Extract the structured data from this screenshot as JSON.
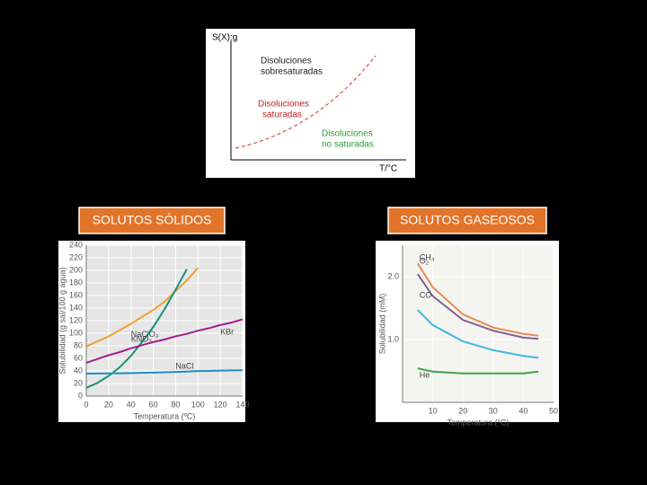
{
  "diagram": {
    "y_label": "S(X):g",
    "x_label": "T/°C",
    "regions": [
      {
        "lines": [
          "Disoluciones",
          "sobresaturadas"
        ]
      },
      {
        "lines": [
          "Disoluciones",
          "saturadas"
        ]
      },
      {
        "lines": [
          "Disoluciones",
          "no saturadas"
        ]
      }
    ]
  },
  "labels": [
    "SOLUTOS SÓLIDOS",
    "SOLUTOS GASEOSOS"
  ],
  "chart_data": [
    {
      "type": "line",
      "x_label": "Temperatura (ºC)",
      "y_label": "Solubilidad (g sal/100 g agua)",
      "x": [
        0,
        10,
        20,
        30,
        40,
        50,
        60,
        70,
        80,
        90,
        100,
        110,
        120,
        130,
        140
      ],
      "xlim": [
        0,
        140
      ],
      "xticks": [
        0,
        20,
        40,
        60,
        80,
        100,
        120,
        140
      ],
      "ylim": [
        0,
        240
      ],
      "yticks": [
        0,
        20,
        40,
        60,
        80,
        100,
        120,
        140,
        160,
        180,
        200,
        220,
        240
      ],
      "grid": true,
      "series": [
        {
          "name": "NaClO₃",
          "color": "#f0a030",
          "values": [
            79,
            87,
            95,
            105,
            115,
            126,
            137,
            150,
            167,
            184,
            204,
            null,
            null,
            null,
            null
          ]
        },
        {
          "name": "KNO₃",
          "color": "#16907a",
          "values": [
            13,
            21,
            32,
            46,
            64,
            86,
            110,
            138,
            169,
            202,
            null,
            null,
            null,
            null,
            null
          ]
        },
        {
          "name": "KBr",
          "color": "#a0208c",
          "values": [
            53,
            59,
            65,
            70,
            76,
            81,
            86,
            90,
            95,
            99,
            104,
            108,
            113,
            117,
            122
          ]
        },
        {
          "name": "NaCl",
          "color": "#1f8fc0",
          "values": [
            35.7,
            35.8,
            36,
            36.3,
            36.6,
            37,
            37.3,
            37.8,
            38.4,
            39,
            39.8,
            40,
            40.5,
            40.8,
            41
          ]
        }
      ]
    },
    {
      "type": "line",
      "x_label": "Temperatura (°C)",
      "y_label": "Solubilidad (mM)",
      "x": [
        5,
        10,
        20,
        30,
        40,
        45
      ],
      "xlim": [
        0,
        50
      ],
      "xticks": [
        10,
        20,
        30,
        40,
        50
      ],
      "ylim": [
        0,
        2.5
      ],
      "yticks": [
        {
          "value": 1,
          "label": "1.0"
        },
        {
          "value": 2,
          "label": "2.0"
        }
      ],
      "grid": true,
      "series": [
        {
          "name": "CH₄",
          "color": "#e88a50",
          "values": [
            2.21,
            1.83,
            1.4,
            1.19,
            1.09,
            1.06
          ]
        },
        {
          "name": "O₂",
          "color": "#806090",
          "values": [
            2.04,
            1.69,
            1.31,
            1.14,
            1.03,
            1.01
          ]
        },
        {
          "name": "CO",
          "color": "#40b8e0",
          "values": [
            1.47,
            1.23,
            0.97,
            0.83,
            0.74,
            0.71
          ]
        },
        {
          "name": "He",
          "color": "#40a050",
          "values": [
            0.54,
            0.49,
            0.46,
            0.46,
            0.46,
            0.49
          ]
        }
      ]
    }
  ]
}
